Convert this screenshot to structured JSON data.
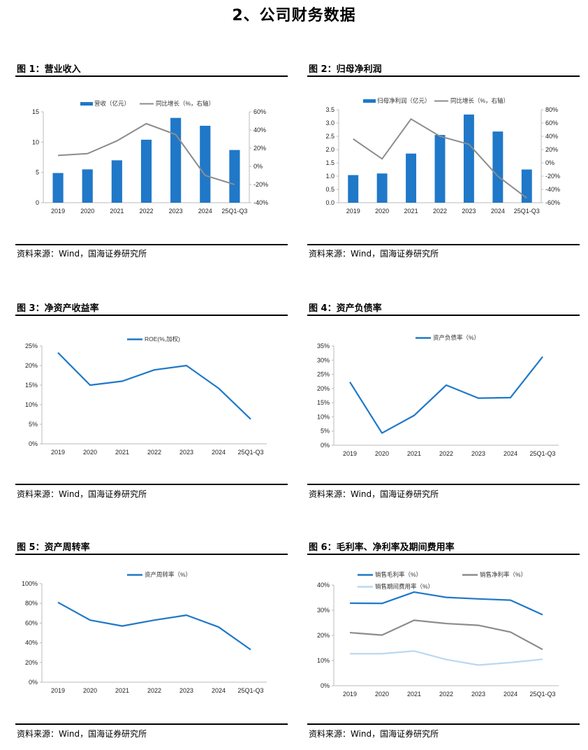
{
  "page": {
    "title": "2、公司财务数据"
  },
  "colors": {
    "bar": "#1f78c8",
    "line_gray": "#8c8c8c",
    "line_blue": "#1f78c8",
    "line_light": "#b9d8f2",
    "axis": "#bbbbbb"
  },
  "panels": [
    {
      "title": "图 1：营业收入",
      "source": "资料来源：Wind，国海证券研究所"
    },
    {
      "title": "图 2：归母净利润",
      "source": "资料来源：Wind，国海证券研究所"
    },
    {
      "title": "图 3：净资产收益率",
      "source": "资料来源：Wind，国海证券研究所"
    },
    {
      "title": "图 4：资产负债率",
      "source": "资料来源：Wind，国海证券研究所"
    },
    {
      "title": "图 5：资产周转率",
      "source": "资料来源：Wind，国海证券研究所"
    },
    {
      "title": "图 6：毛利率、净利率及期间费用率",
      "source": "资料来源：Wind，国海证券研究所"
    }
  ],
  "chart_data": [
    {
      "id": "revenue",
      "type": "bar+line",
      "categories": [
        "2019",
        "2020",
        "2021",
        "2022",
        "2023",
        "2024",
        "25Q1-Q3"
      ],
      "bars": {
        "name": "营收（亿元）",
        "values": [
          4.9,
          5.5,
          7.0,
          10.4,
          14.0,
          12.7,
          8.7
        ]
      },
      "line": {
        "name": "同比增长（%，右轴）",
        "values": [
          12,
          14,
          28,
          47,
          35,
          -10,
          -20
        ]
      },
      "yleft": {
        "min": 0,
        "max": 15,
        "step": 5,
        "ticks": [
          "0",
          "5",
          "10",
          "15"
        ]
      },
      "yright": {
        "min": -40,
        "max": 60,
        "step": 20,
        "ticks": [
          "-40%",
          "-20%",
          "0%",
          "20%",
          "40%",
          "60%"
        ]
      }
    },
    {
      "id": "net-profit",
      "type": "bar+line",
      "categories": [
        "2019",
        "2020",
        "2021",
        "2022",
        "2023",
        "2024",
        "25Q1-Q3"
      ],
      "bars": {
        "name": "归母净利润（亿元）",
        "values": [
          1.04,
          1.1,
          1.85,
          2.55,
          3.32,
          2.68,
          1.25
        ]
      },
      "line": {
        "name": "同比增长（%，右轴）",
        "values": [
          36,
          6,
          66,
          40,
          28,
          -20,
          -53
        ]
      },
      "yleft": {
        "min": 0,
        "max": 3.5,
        "step": 0.5,
        "ticks": [
          "0.0",
          "0.5",
          "1.0",
          "1.5",
          "2.0",
          "2.5",
          "3.0",
          "3.5"
        ]
      },
      "yright": {
        "min": -60,
        "max": 80,
        "step": 20,
        "ticks": [
          "-60%",
          "-40%",
          "-20%",
          "0%",
          "20%",
          "40%",
          "60%",
          "80%"
        ]
      }
    },
    {
      "id": "roe",
      "type": "line",
      "categories": [
        "2019",
        "2020",
        "2021",
        "2022",
        "2023",
        "2024",
        "25Q1-Q3"
      ],
      "series": [
        {
          "name": "ROE(%,加权)",
          "values": [
            23.3,
            15.0,
            16.0,
            18.9,
            20.0,
            14.2,
            6.3
          ],
          "color": "#1f78c8"
        }
      ],
      "yleft": {
        "min": 0,
        "max": 25,
        "step": 5,
        "ticks": [
          "0%",
          "5%",
          "10%",
          "15%",
          "20%",
          "25%"
        ]
      }
    },
    {
      "id": "debt-ratio",
      "type": "line",
      "categories": [
        "2019",
        "2020",
        "2021",
        "2022",
        "2023",
        "2024",
        "25Q1-Q3"
      ],
      "series": [
        {
          "name": "资产负债率（%）",
          "values": [
            22.3,
            4.3,
            10.5,
            21.2,
            16.6,
            16.8,
            31.2
          ],
          "color": "#1f78c8"
        }
      ],
      "yleft": {
        "min": 0,
        "max": 35,
        "step": 5,
        "ticks": [
          "0%",
          "5%",
          "10%",
          "15%",
          "20%",
          "25%",
          "30%",
          "35%"
        ]
      }
    },
    {
      "id": "asset-turnover",
      "type": "line",
      "categories": [
        "2019",
        "2020",
        "2021",
        "2022",
        "2023",
        "2024",
        "25Q1-Q3"
      ],
      "series": [
        {
          "name": "资产周转率（%）",
          "values": [
            81,
            63,
            57,
            63,
            68,
            56,
            33
          ],
          "color": "#1f78c8"
        }
      ],
      "yleft": {
        "min": 0,
        "max": 100,
        "step": 20,
        "ticks": [
          "0%",
          "20%",
          "40%",
          "60%",
          "80%",
          "100%"
        ]
      }
    },
    {
      "id": "margins",
      "type": "line",
      "categories": [
        "2019",
        "2020",
        "2021",
        "2022",
        "2023",
        "2024",
        "25Q1-Q3"
      ],
      "series": [
        {
          "name": "销售毛利率（%）",
          "values": [
            32.8,
            32.7,
            37.2,
            35.1,
            34.5,
            34.0,
            28.2
          ],
          "color": "#1f78c8"
        },
        {
          "name": "销售净利率（%）",
          "values": [
            21.1,
            20.1,
            26.0,
            24.7,
            24.0,
            21.3,
            14.4
          ],
          "color": "#8c8c8c"
        },
        {
          "name": "销售期间费用率（%）",
          "values": [
            12.7,
            12.7,
            13.8,
            10.4,
            8.2,
            9.2,
            10.5
          ],
          "color": "#b9d8f2"
        }
      ],
      "yleft": {
        "min": 0,
        "max": 40,
        "step": 10,
        "ticks": [
          "0%",
          "10%",
          "20%",
          "30%",
          "40%"
        ]
      }
    }
  ]
}
